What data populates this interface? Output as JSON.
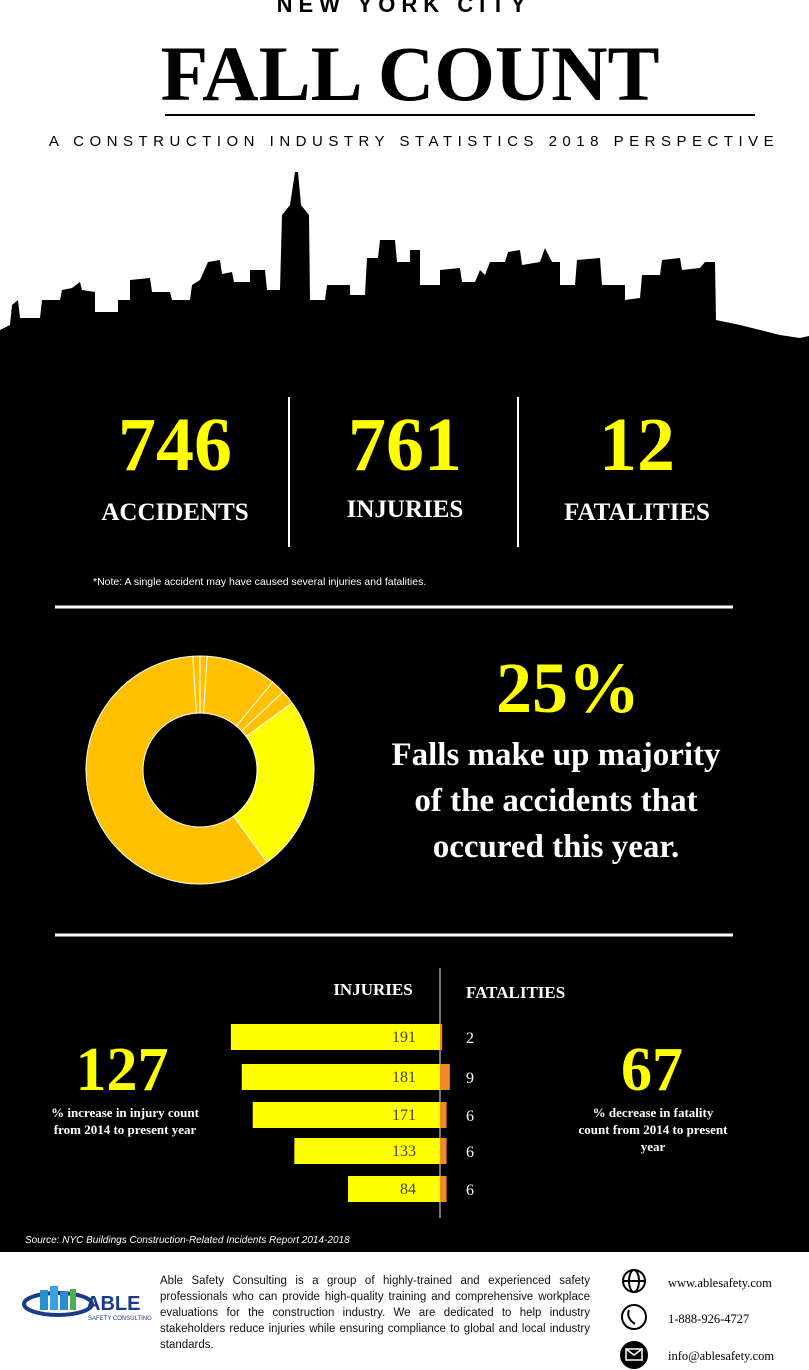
{
  "header": {
    "kicker": "NEW YORK CITY",
    "title": "FALL COUNT",
    "subtitle": "A CONSTRUCTION INDUSTRY STATISTICS 2018 PERSPECTIVE"
  },
  "stats": [
    {
      "value": 746,
      "label": "ACCIDENTS"
    },
    {
      "value": 761,
      "label": "INJURIES"
    },
    {
      "value": 12,
      "label": "FATALITIES"
    }
  ],
  "note": "*Note: A single accident may have caused several injuries and fatalities.",
  "falls": {
    "headline": "25%",
    "lines": [
      "Falls make up majority",
      "of the accidents that",
      "occured this  year."
    ],
    "donut": {
      "values": [
        1,
        10,
        2,
        2,
        25,
        59,
        1
      ],
      "colors": [
        "#ffc000",
        "#ffc000",
        "#ffc000",
        "#ffc000",
        "#ffff00",
        "#ffc000",
        "#ffc000"
      ]
    }
  },
  "comparison": {
    "injuries_label": "INJURIES",
    "fatalities_label": "FATALITIES",
    "injuries": [
      191,
      181,
      171,
      133,
      84
    ],
    "fatalities": [
      2,
      9,
      6,
      6,
      6
    ],
    "injury_color": "#ffff00",
    "fatality_color": "#f08a24"
  },
  "left": {
    "value": 127,
    "text": "% increase in injury count from 2014 to present year"
  },
  "right": {
    "value": 67,
    "text": "% decrease in fatality count from 2014 to present year"
  },
  "source": "Source:  NYC Buildings Construction-Related Incidents Report 2014-2018",
  "footer": {
    "logo_name": "ABLE",
    "logo_sub": "SAFETY CONSULTING",
    "about": "Able Safety Consulting is a group of highly-trained and experienced safety professionals who can provide high-quality training and comprehensive workplace evaluations for the construction industry.  We are dedicated to help industry stakeholders reduce injuries while ensuring compliance to global and local industry standards.",
    "website": "www.ablesafety.com",
    "phone": "1-888-926-4727",
    "email": "info@ablesafety.com"
  }
}
